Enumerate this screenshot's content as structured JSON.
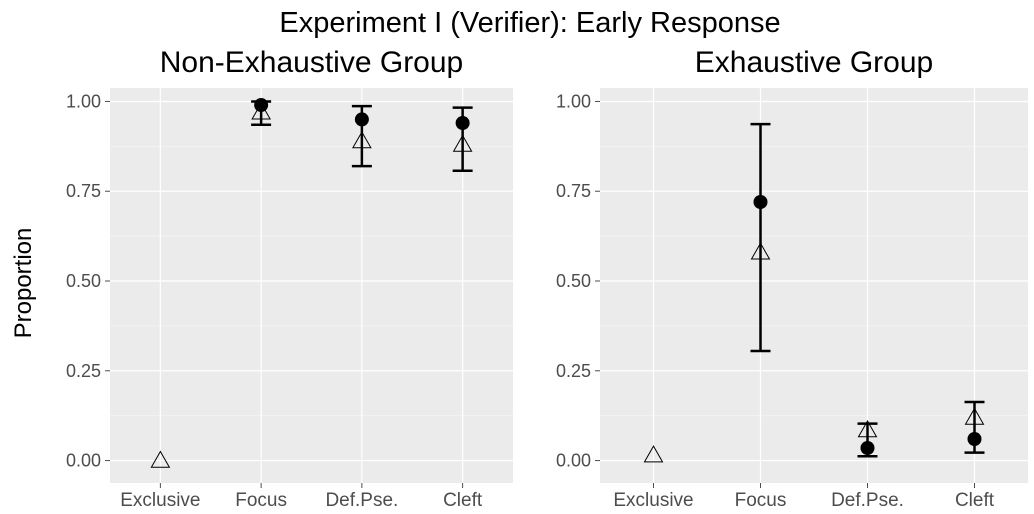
{
  "title": "Experiment I (Verifier): Early Response",
  "ylabel": "Proportion",
  "chart_data": [
    {
      "type": "scatter",
      "title": "Non-Exhaustive Group",
      "categories": [
        "Exclusive",
        "Focus",
        "Def.Pse.",
        "Cleft"
      ],
      "ylim": [
        -0.0625,
        1.0375
      ],
      "yticks": [
        0.0,
        0.25,
        0.5,
        0.75,
        1.0
      ],
      "ytick_labels": [
        "0.00",
        "0.25",
        "0.50",
        "0.75",
        "1.00"
      ],
      "grid": true,
      "series": [
        {
          "marker": "filled-circle",
          "values": [
            null,
            0.99,
            0.95,
            0.94
          ]
        },
        {
          "marker": "open-triangle",
          "values": [
            0.0,
            0.97,
            0.89,
            0.88
          ]
        }
      ],
      "error_bars": [
        {
          "category": "Focus",
          "low": 0.935,
          "high": 1.0
        },
        {
          "category": "Def.Pse.",
          "low": 0.82,
          "high": 0.987
        },
        {
          "category": "Cleft",
          "low": 0.807,
          "high": 0.983
        }
      ]
    },
    {
      "type": "scatter",
      "title": "Exhaustive Group",
      "categories": [
        "Exclusive",
        "Focus",
        "Def.Pse.",
        "Cleft"
      ],
      "ylim": [
        -0.0625,
        1.0375
      ],
      "yticks": [
        0.0,
        0.25,
        0.5,
        0.75,
        1.0
      ],
      "ytick_labels": [
        "0.00",
        "0.25",
        "0.50",
        "0.75",
        "1.00"
      ],
      "grid": true,
      "series": [
        {
          "marker": "filled-circle",
          "values": [
            null,
            0.72,
            0.035,
            0.06
          ]
        },
        {
          "marker": "open-triangle",
          "values": [
            0.015,
            0.58,
            0.085,
            0.12
          ]
        }
      ],
      "error_bars": [
        {
          "category": "Focus",
          "low": 0.305,
          "high": 0.937
        },
        {
          "category": "Def.Pse.",
          "low": 0.012,
          "high": 0.103
        },
        {
          "category": "Cleft",
          "low": 0.022,
          "high": 0.163
        }
      ]
    }
  ]
}
